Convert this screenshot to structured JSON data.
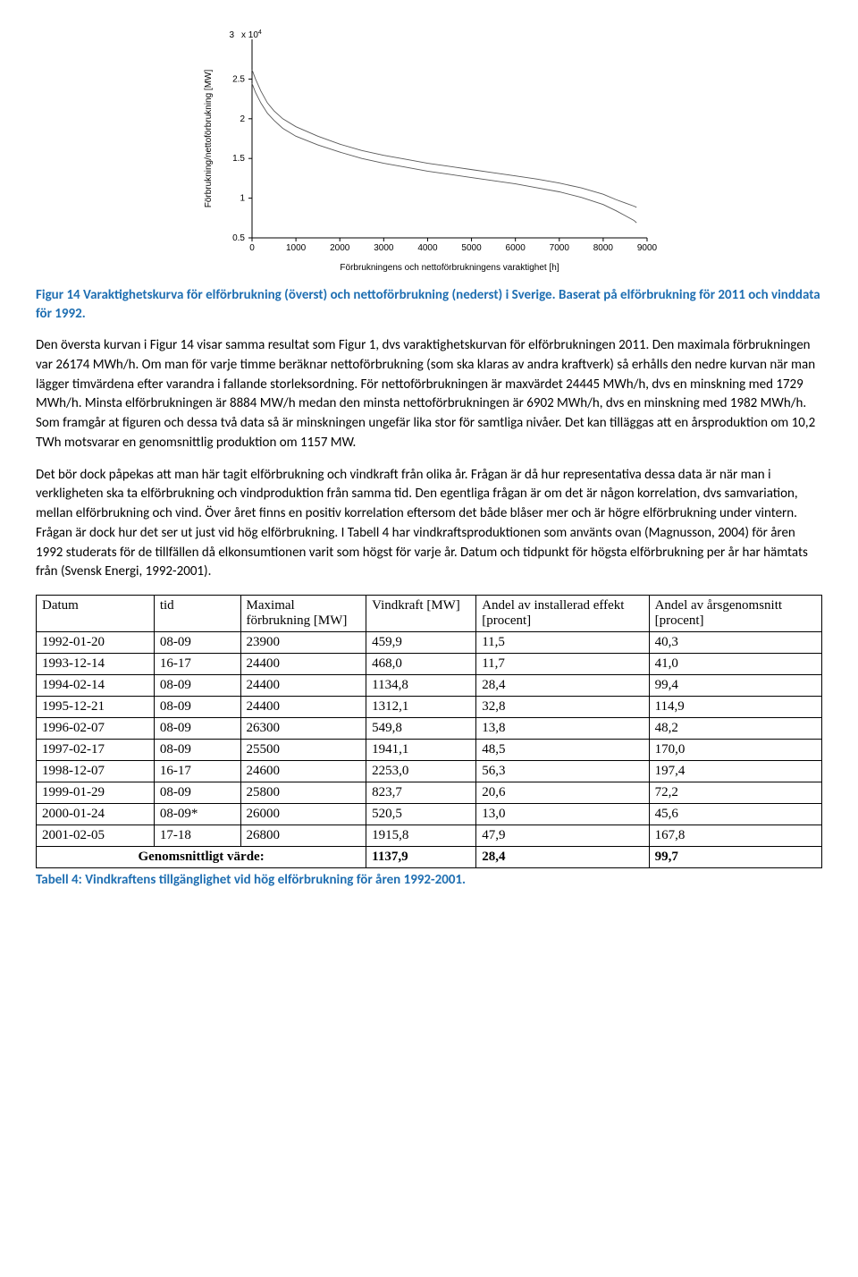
{
  "chart": {
    "type": "line",
    "exponent_label": "x 10",
    "exponent_sup": "4",
    "exponent_leading_tick": "3",
    "ylabel": "Förbrukning/nettoförbrukning [MW]",
    "xlabel": "Förbrukningens och nettoförbrukningens varaktighet [h]",
    "xlim": [
      0,
      9000
    ],
    "ylim": [
      0.5,
      3.0
    ],
    "xticks": [
      0,
      1000,
      2000,
      3000,
      4000,
      5000,
      6000,
      7000,
      8000,
      9000
    ],
    "yticks": [
      0.5,
      1,
      1.5,
      2,
      2.5
    ],
    "line_color": "#595959",
    "line_width": 0.9,
    "background_color": "#ffffff",
    "axis_color": "#000000",
    "upper_series": [
      [
        0,
        2.617
      ],
      [
        80,
        2.5
      ],
      [
        200,
        2.35
      ],
      [
        350,
        2.2
      ],
      [
        500,
        2.1
      ],
      [
        700,
        2.0
      ],
      [
        1000,
        1.9
      ],
      [
        1500,
        1.78
      ],
      [
        2000,
        1.68
      ],
      [
        2500,
        1.6
      ],
      [
        3000,
        1.54
      ],
      [
        3500,
        1.49
      ],
      [
        4000,
        1.44
      ],
      [
        4500,
        1.4
      ],
      [
        5000,
        1.36
      ],
      [
        5500,
        1.32
      ],
      [
        6000,
        1.28
      ],
      [
        6500,
        1.24
      ],
      [
        7000,
        1.19
      ],
      [
        7500,
        1.13
      ],
      [
        8000,
        1.05
      ],
      [
        8300,
        0.98
      ],
      [
        8500,
        0.94
      ],
      [
        8700,
        0.9
      ],
      [
        8760,
        0.885
      ]
    ],
    "lower_series": [
      [
        0,
        2.445
      ],
      [
        80,
        2.33
      ],
      [
        200,
        2.2
      ],
      [
        350,
        2.07
      ],
      [
        500,
        1.98
      ],
      [
        700,
        1.88
      ],
      [
        1000,
        1.78
      ],
      [
        1500,
        1.67
      ],
      [
        2000,
        1.58
      ],
      [
        2500,
        1.5
      ],
      [
        3000,
        1.44
      ],
      [
        3500,
        1.39
      ],
      [
        4000,
        1.34
      ],
      [
        4500,
        1.3
      ],
      [
        5000,
        1.26
      ],
      [
        5500,
        1.22
      ],
      [
        6000,
        1.18
      ],
      [
        6500,
        1.13
      ],
      [
        7000,
        1.08
      ],
      [
        7500,
        1.01
      ],
      [
        8000,
        0.92
      ],
      [
        8300,
        0.84
      ],
      [
        8500,
        0.78
      ],
      [
        8700,
        0.72
      ],
      [
        8760,
        0.69
      ]
    ]
  },
  "figure_caption": "Figur 14 Varaktighetskurva för elförbrukning (överst) och nettoförbrukning (nederst) i Sverige. Baserat på elförbrukning för 2011 och vinddata för 1992.",
  "para1": "Den översta kurvan i Figur 14 visar samma resultat som Figur 1, dvs varaktighetskurvan för elförbrukningen 2011. Den maximala förbrukningen var 26174 MWh/h. Om man för varje timme beräknar nettoförbrukning (som ska klaras av andra kraftverk) så erhålls den nedre kurvan när man lägger timvärdena efter varandra i fallande storleksordning. För nettoförbrukningen är maxvärdet 24445 MWh/h, dvs en minskning med 1729 MWh/h. Minsta elförbrukningen är 8884 MW/h medan den minsta nettoförbrukningen är 6902 MWh/h, dvs en minskning med 1982 MWh/h. Som framgår at figuren och dessa två data så är minskningen ungefär lika stor för samtliga nivåer. Det kan tilläggas att en årsproduktion om 10,2 TWh motsvarar en genomsnittlig produktion om 1157 MW.",
  "para2": "Det bör dock påpekas att man här tagit elförbrukning och vindkraft från olika år. Frågan är då hur representativa dessa data är när man i verkligheten ska ta elförbrukning och vindproduktion från samma tid. Den egentliga frågan är om det är någon korrelation, dvs samvariation, mellan elförbrukning och vind. Över året finns en positiv korrelation eftersom det både blåser mer och är högre elförbrukning under vintern. Frågan är dock hur det ser ut just vid hög elförbrukning. I Tabell 4 har vindkraftsproduktionen som använts ovan (Magnusson, 2004) för åren 1992 studerats för de tillfällen då elkonsumtionen varit som högst för varje år. Datum och tidpunkt för högsta elförbrukning per år har hämtats från (Svensk Energi, 1992-2001).",
  "table": {
    "columns": [
      "Datum",
      "tid",
      "Maximal förbrukning [MW]",
      "Vindkraft [MW]",
      "Andel av installerad effekt [procent]",
      "Andel av årsgenomsnitt [procent]"
    ],
    "col_widths": [
      "15%",
      "11%",
      "16%",
      "14%",
      "22%",
      "22%"
    ],
    "rows": [
      [
        "1992-01-20",
        "08-09",
        "23900",
        "459,9",
        "11,5",
        "40,3"
      ],
      [
        "1993-12-14",
        "16-17",
        "24400",
        "468,0",
        "11,7",
        "41,0"
      ],
      [
        "1994-02-14",
        "08-09",
        "24400",
        "1134,8",
        "28,4",
        "99,4"
      ],
      [
        "1995-12-21",
        "08-09",
        "24400",
        "1312,1",
        "32,8",
        "114,9"
      ],
      [
        "1996-02-07",
        "08-09",
        "26300",
        "549,8",
        "13,8",
        "48,2"
      ],
      [
        "1997-02-17",
        "08-09",
        "25500",
        "1941,1",
        "48,5",
        "170,0"
      ],
      [
        "1998-12-07",
        "16-17",
        "24600",
        "2253,0",
        "56,3",
        "197,4"
      ],
      [
        "1999-01-29",
        "08-09",
        "25800",
        "823,7",
        "20,6",
        "72,2"
      ],
      [
        "2000-01-24",
        "08-09*",
        "26000",
        "520,5",
        "13,0",
        "45,6"
      ],
      [
        "2001-02-05",
        "17-18",
        "26800",
        "1915,8",
        "47,9",
        "167,8"
      ]
    ],
    "summary_label": "Genomsnittligt värde:",
    "summary_values": [
      "1137,9",
      "28,4",
      "99,7"
    ]
  },
  "table_caption": "Tabell 4: Vindkraftens tillgänglighet vid hög elförbrukning för åren 1992-2001."
}
